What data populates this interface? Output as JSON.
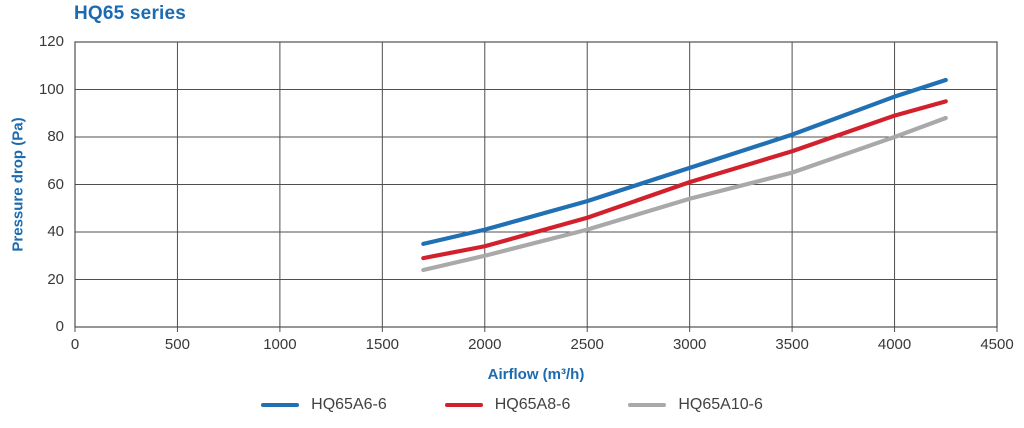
{
  "title": "HQ65 series",
  "colors": {
    "accent_blue": "#1c6bb0",
    "grid": "#4f4f4f",
    "tick_text": "#383838",
    "legend_text": "#414141",
    "background": "#ffffff"
  },
  "chart_data": {
    "type": "line",
    "title": "HQ65 series",
    "xlabel": "Airflow (m³/h)",
    "ylabel": "Pressure drop (Pa)",
    "xlim": [
      0,
      4500
    ],
    "ylim": [
      0,
      120
    ],
    "x_ticks": [
      0,
      500,
      1000,
      1500,
      2000,
      2500,
      3000,
      3500,
      4000,
      4500
    ],
    "y_ticks": [
      0,
      20,
      40,
      60,
      80,
      100,
      120
    ],
    "grid": true,
    "legend_position": "bottom",
    "x": [
      1700,
      2000,
      2500,
      3000,
      3500,
      4000,
      4250
    ],
    "series": [
      {
        "name": "HQ65A6-6",
        "color": "#2170b3",
        "values": [
          35,
          41,
          53,
          67,
          81,
          97,
          104
        ]
      },
      {
        "name": "HQ65A8-6",
        "color": "#d2202c",
        "values": [
          29,
          34,
          46,
          61,
          74,
          89,
          95
        ]
      },
      {
        "name": "HQ65A10-6",
        "color": "#a9a9a9",
        "values": [
          24,
          30,
          41,
          54,
          65,
          80,
          88
        ]
      }
    ]
  }
}
